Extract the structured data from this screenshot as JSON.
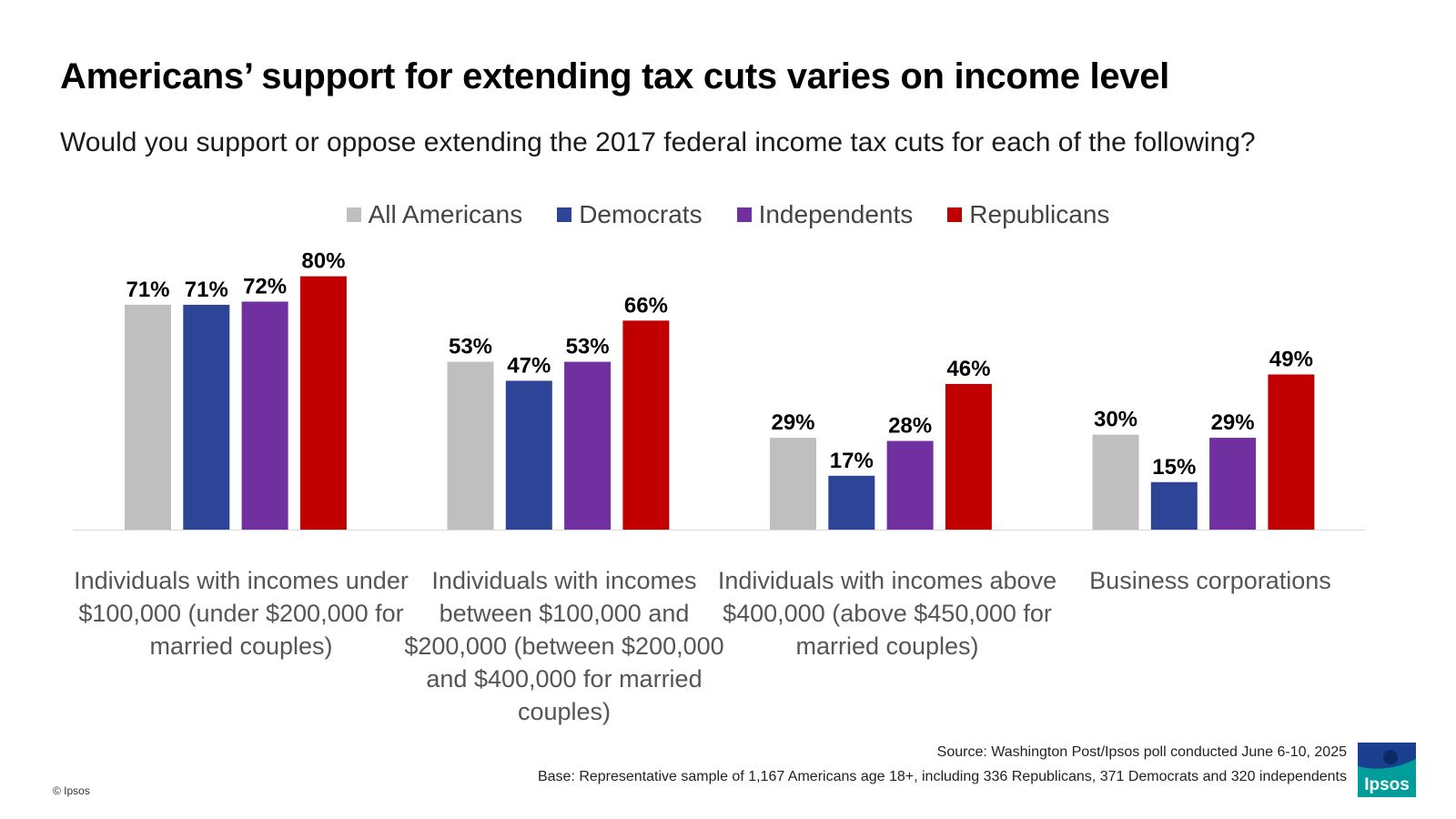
{
  "title": "Americans’ support for extending tax cuts varies on income level",
  "subtitle": "Would you support or oppose extending the 2017 federal income tax cuts for each of the following?",
  "legend": [
    {
      "label": "All Americans",
      "color": "#bfbfbf"
    },
    {
      "label": "Democrats",
      "color": "#2e4597"
    },
    {
      "label": "Independents",
      "color": "#7030a0"
    },
    {
      "label": "Republicans",
      "color": "#c00000"
    }
  ],
  "chart_data": {
    "type": "bar",
    "categories": [
      "Individuals with incomes under $100,000 (under $200,000 for married couples)",
      "Individuals with incomes between $100,000 and $200,000 (between $200,000 and $400,000 for married couples)",
      "Individuals with incomes above $400,000 (above $450,000 for married couples)",
      "Business corporations"
    ],
    "series": [
      {
        "name": "All Americans",
        "color": "#bfbfbf",
        "values": [
          71,
          53,
          29,
          30
        ]
      },
      {
        "name": "Democrats",
        "color": "#2e4597",
        "values": [
          71,
          47,
          17,
          15
        ]
      },
      {
        "name": "Independents",
        "color": "#7030a0",
        "values": [
          72,
          53,
          28,
          29
        ]
      },
      {
        "name": "Republicans",
        "color": "#c00000",
        "values": [
          80,
          66,
          46,
          49
        ]
      }
    ],
    "value_suffix": "%",
    "ylim": [
      0,
      80
    ],
    "grid": false,
    "legend_position": "top-center"
  },
  "footer": {
    "source": "Source: Washington Post/Ipsos poll conducted June 6-10, 2025",
    "base": "Base: Representative sample of  1,167 Americans age 18+, including 336 Republicans, 371 Democrats and 320 independents",
    "copyright": "© Ipsos",
    "logo_text": "Ipsos",
    "logo_color": "#009d9a"
  }
}
